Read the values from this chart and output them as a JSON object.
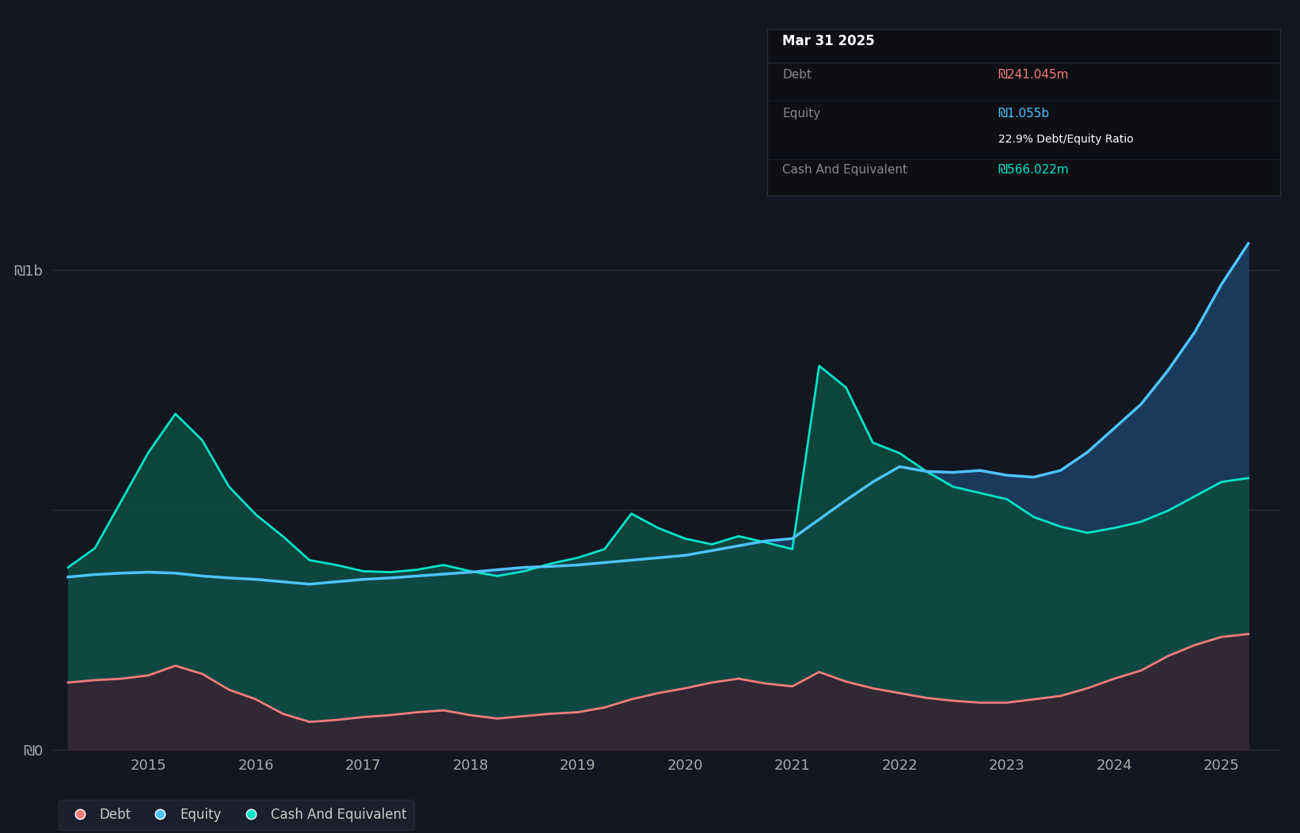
{
  "background_color": "#131722",
  "plot_bg_color": "#131722",
  "grid_color": "#2a2e39",
  "ylim": [
    0,
    1250000000
  ],
  "ylabel_1b": "₪1b",
  "ylabel_0": "₪0",
  "debt_color": "#f47c7c",
  "equity_color": "#4dc3ff",
  "cash_color": "#00e5c8",
  "equity_fill_color": "#1a3a5c",
  "cash_fill_color": "#0d4a40",
  "debt_fill_color": "#3a2030",
  "tooltip_bg": "#0d0f14",
  "tooltip_border": "#2a2e39",
  "tooltip_title": "Mar 31 2025",
  "tooltip_debt_label": "Debt",
  "tooltip_debt_value": "₪241.045m",
  "tooltip_equity_label": "Equity",
  "tooltip_equity_value": "₪1.055b",
  "tooltip_ratio": "22.9% Debt/Equity Ratio",
  "tooltip_cash_label": "Cash And Equivalent",
  "tooltip_cash_value": "₪566.022m",
  "legend_items": [
    "Debt",
    "Equity",
    "Cash And Equivalent"
  ],
  "times": [
    2014.25,
    2014.5,
    2014.75,
    2015.0,
    2015.25,
    2015.5,
    2015.75,
    2016.0,
    2016.25,
    2016.5,
    2016.75,
    2017.0,
    2017.25,
    2017.5,
    2017.75,
    2018.0,
    2018.25,
    2018.5,
    2018.75,
    2019.0,
    2019.25,
    2019.5,
    2019.75,
    2020.0,
    2020.25,
    2020.5,
    2020.75,
    2021.0,
    2021.25,
    2021.5,
    2021.75,
    2022.0,
    2022.25,
    2022.5,
    2022.75,
    2023.0,
    2023.25,
    2023.5,
    2023.75,
    2024.0,
    2024.25,
    2024.5,
    2024.75,
    2025.0,
    2025.25
  ],
  "equity": [
    360000000,
    365000000,
    368000000,
    370000000,
    368000000,
    362000000,
    358000000,
    355000000,
    350000000,
    345000000,
    350000000,
    355000000,
    358000000,
    362000000,
    366000000,
    370000000,
    375000000,
    380000000,
    382000000,
    385000000,
    390000000,
    395000000,
    400000000,
    405000000,
    415000000,
    425000000,
    435000000,
    440000000,
    480000000,
    520000000,
    558000000,
    590000000,
    580000000,
    578000000,
    582000000,
    572000000,
    568000000,
    582000000,
    620000000,
    670000000,
    720000000,
    790000000,
    870000000,
    970000000,
    1055000000
  ],
  "debt": [
    140000000,
    145000000,
    148000000,
    155000000,
    175000000,
    158000000,
    125000000,
    105000000,
    75000000,
    58000000,
    62000000,
    68000000,
    72000000,
    78000000,
    82000000,
    72000000,
    65000000,
    70000000,
    75000000,
    78000000,
    88000000,
    105000000,
    118000000,
    128000000,
    140000000,
    148000000,
    138000000,
    132000000,
    162000000,
    142000000,
    128000000,
    118000000,
    108000000,
    102000000,
    98000000,
    98000000,
    105000000,
    112000000,
    128000000,
    148000000,
    165000000,
    195000000,
    218000000,
    235000000,
    241045000
  ],
  "cash": [
    380000000,
    420000000,
    520000000,
    620000000,
    700000000,
    645000000,
    548000000,
    490000000,
    445000000,
    395000000,
    385000000,
    372000000,
    370000000,
    375000000,
    385000000,
    372000000,
    362000000,
    372000000,
    388000000,
    400000000,
    418000000,
    492000000,
    462000000,
    440000000,
    428000000,
    445000000,
    432000000,
    418000000,
    800000000,
    755000000,
    640000000,
    618000000,
    580000000,
    548000000,
    535000000,
    522000000,
    485000000,
    465000000,
    452000000,
    462000000,
    475000000,
    498000000,
    528000000,
    558000000,
    566022000
  ]
}
